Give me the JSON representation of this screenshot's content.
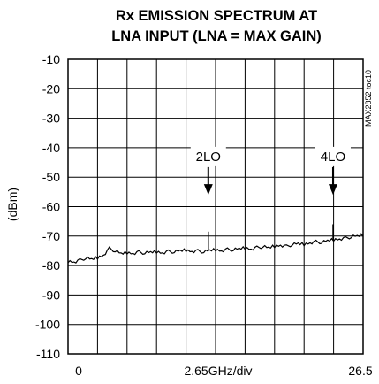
{
  "chart_data": {
    "type": "line",
    "title_line1": "Rx EMISSION SPECTRUM AT",
    "title_line2": "LNA INPUT (LNA = MAX GAIN)",
    "ylabel": "(dBm)",
    "xlabel": "2.65GHz/div",
    "x_tick_start": "0",
    "x_tick_end": "26.5",
    "side_code": "MAX2852 toc10",
    "xlim": [
      0,
      26.5
    ],
    "ylim": [
      -110,
      -10
    ],
    "y_ticks": [
      -10,
      -20,
      -30,
      -40,
      -50,
      -60,
      -70,
      -80,
      -90,
      -100,
      -110
    ],
    "x_divisions": 10,
    "grid": true,
    "series": [
      {
        "x": [
          0,
          0.53,
          1.06,
          1.59,
          2.12,
          2.65,
          3.18,
          3.71,
          4.24,
          4.77,
          5.3,
          5.83,
          6.36,
          6.89,
          7.42,
          7.95,
          8.48,
          9.01,
          9.54,
          10.07,
          10.6,
          11.13,
          11.66,
          12.19,
          12.72,
          13.25,
          13.78,
          14.31,
          14.84,
          15.37,
          15.9,
          16.43,
          16.96,
          17.49,
          18.02,
          18.55,
          19.08,
          19.61,
          20.14,
          20.67,
          21.2,
          21.73,
          22.26,
          22.79,
          23.32,
          23.85,
          24.38,
          24.91,
          25.44,
          25.97,
          26.5
        ],
        "y": [
          -78.5,
          -78.8,
          -78.2,
          -77.5,
          -77.9,
          -77.3,
          -76.5,
          -74.2,
          -75.1,
          -76.0,
          -75.6,
          -75.9,
          -75.4,
          -75.8,
          -75.5,
          -75.3,
          -75.7,
          -75.2,
          -75.4,
          -75.0,
          -74.8,
          -75.2,
          -75.0,
          -75.4,
          -74.9,
          -74.6,
          -75.0,
          -74.5,
          -74.7,
          -74.3,
          -74.0,
          -74.4,
          -73.9,
          -73.6,
          -74.0,
          -73.4,
          -73.1,
          -73.5,
          -72.9,
          -72.6,
          -72.8,
          -72.3,
          -71.9,
          -72.2,
          -71.6,
          -71.2,
          -71.0,
          -70.7,
          -70.3,
          -70.0,
          -69.6
        ]
      }
    ],
    "spikes": [
      {
        "x": 12.6,
        "y": -68.5
      },
      {
        "x": 23.8,
        "y": -66.0
      }
    ],
    "annotations": [
      {
        "label": "2LO",
        "x": 12.6,
        "y": -43,
        "arrow_to_y": -56
      },
      {
        "label": "4LO",
        "x": 23.8,
        "y": -43,
        "arrow_to_y": -56
      }
    ]
  }
}
